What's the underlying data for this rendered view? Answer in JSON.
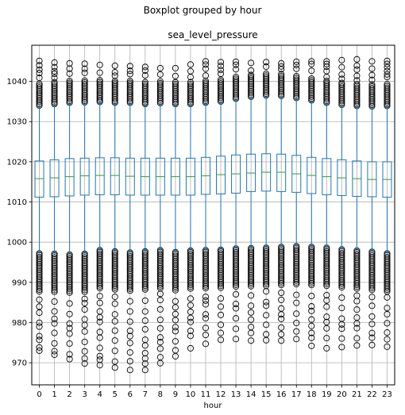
{
  "chart_data": {
    "type": "boxplot",
    "suptitle": "Boxplot grouped by hour",
    "title": "sea_level_pressure",
    "xlabel": "hour",
    "ylabel": "",
    "ylim": [
      964.5,
      1049
    ],
    "yticks": [
      970,
      980,
      990,
      1000,
      1010,
      1020,
      1030,
      1040
    ],
    "grid": true,
    "colors": {
      "box": "#1f77b4",
      "median": "#2ca02c",
      "grid": "#b0b0b0",
      "flier": "#000000"
    },
    "categories": [
      "0",
      "1",
      "2",
      "3",
      "4",
      "5",
      "6",
      "7",
      "8",
      "9",
      "10",
      "11",
      "12",
      "13",
      "14",
      "15",
      "16",
      "17",
      "18",
      "19",
      "20",
      "21",
      "22",
      "23"
    ],
    "boxes": [
      {
        "q1": 1011.2,
        "median": 1015.8,
        "q3": 1020.2,
        "whislo": 997.6,
        "whishi": 1033.6,
        "outlier_min": 973.0,
        "outlier_max": 1045.1
      },
      {
        "q1": 1011.3,
        "median": 1016.0,
        "q3": 1020.5,
        "whislo": 997.5,
        "whishi": 1034.0,
        "outlier_min": 972.0,
        "outlier_max": 1044.7
      },
      {
        "q1": 1011.5,
        "median": 1016.3,
        "q3": 1020.8,
        "whislo": 997.3,
        "whishi": 1034.3,
        "outlier_min": 970.9,
        "outlier_max": 1044.5
      },
      {
        "q1": 1011.7,
        "median": 1016.5,
        "q3": 1020.9,
        "whislo": 997.5,
        "whishi": 1034.4,
        "outlier_min": 969.8,
        "outlier_max": 1044.4
      },
      {
        "q1": 1011.8,
        "median": 1016.6,
        "q3": 1021.0,
        "whislo": 998.4,
        "whishi": 1034.5,
        "outlier_min": 969.4,
        "outlier_max": 1044.1
      },
      {
        "q1": 1011.8,
        "median": 1016.6,
        "q3": 1021.0,
        "whislo": 998.1,
        "whishi": 1034.3,
        "outlier_min": 968.8,
        "outlier_max": 1043.9
      },
      {
        "q1": 1011.7,
        "median": 1016.4,
        "q3": 1020.9,
        "whislo": 997.8,
        "whishi": 1034.3,
        "outlier_min": 968.2,
        "outlier_max": 1043.8
      },
      {
        "q1": 1011.7,
        "median": 1016.3,
        "q3": 1020.9,
        "whislo": 998.1,
        "whishi": 1034.0,
        "outlier_min": 968.2,
        "outlier_max": 1043.6
      },
      {
        "q1": 1011.7,
        "median": 1016.3,
        "q3": 1020.9,
        "whislo": 998.4,
        "whishi": 1034.2,
        "outlier_min": 969.9,
        "outlier_max": 1043.3
      },
      {
        "q1": 1011.7,
        "median": 1016.3,
        "q3": 1020.9,
        "whislo": 997.9,
        "whishi": 1034.0,
        "outlier_min": 971.6,
        "outlier_max": 1043.3
      },
      {
        "q1": 1011.7,
        "median": 1016.3,
        "q3": 1020.9,
        "whislo": 998.3,
        "whishi": 1034.0,
        "outlier_min": 973.6,
        "outlier_max": 1044.2
      },
      {
        "q1": 1011.9,
        "median": 1016.5,
        "q3": 1021.1,
        "whislo": 998.4,
        "whishi": 1034.3,
        "outlier_min": 974.7,
        "outlier_max": 1045.0
      },
      {
        "q1": 1012.0,
        "median": 1016.8,
        "q3": 1021.4,
        "whislo": 998.5,
        "whishi": 1034.6,
        "outlier_min": 975.7,
        "outlier_max": 1044.8
      },
      {
        "q1": 1012.2,
        "median": 1017.0,
        "q3": 1021.7,
        "whislo": 998.8,
        "whishi": 1035.3,
        "outlier_min": 975.9,
        "outlier_max": 1044.9
      },
      {
        "q1": 1012.6,
        "median": 1017.2,
        "q3": 1021.9,
        "whislo": 998.9,
        "whishi": 1035.8,
        "outlier_min": 975.5,
        "outlier_max": 1044.6
      },
      {
        "q1": 1012.7,
        "median": 1017.4,
        "q3": 1022.0,
        "whislo": 999.0,
        "whishi": 1036.1,
        "outlier_min": 975.6,
        "outlier_max": 1044.8
      },
      {
        "q1": 1012.6,
        "median": 1017.4,
        "q3": 1021.9,
        "whislo": 999.2,
        "whishi": 1036.0,
        "outlier_min": 975.5,
        "outlier_max": 1044.5
      },
      {
        "q1": 1012.4,
        "median": 1017.0,
        "q3": 1021.6,
        "whislo": 999.4,
        "whishi": 1035.5,
        "outlier_min": 975.9,
        "outlier_max": 1044.9
      },
      {
        "q1": 1012.1,
        "median": 1016.6,
        "q3": 1021.1,
        "whislo": 999.2,
        "whishi": 1034.9,
        "outlier_min": 974.2,
        "outlier_max": 1045.0
      },
      {
        "q1": 1011.8,
        "median": 1016.3,
        "q3": 1020.8,
        "whislo": 999.0,
        "whishi": 1034.3,
        "outlier_min": 973.6,
        "outlier_max": 1045.0
      },
      {
        "q1": 1011.6,
        "median": 1016.0,
        "q3": 1020.5,
        "whislo": 998.6,
        "whishi": 1033.8,
        "outlier_min": 973.9,
        "outlier_max": 1045.3
      },
      {
        "q1": 1011.4,
        "median": 1015.8,
        "q3": 1020.2,
        "whislo": 998.3,
        "whishi": 1033.5,
        "outlier_min": 974.3,
        "outlier_max": 1045.5
      },
      {
        "q1": 1011.3,
        "median": 1015.6,
        "q3": 1020.0,
        "whislo": 998.0,
        "whishi": 1033.4,
        "outlier_min": 974.4,
        "outlier_max": 1045.0
      },
      {
        "q1": 1011.2,
        "median": 1015.6,
        "q3": 1020.0,
        "whislo": 997.6,
        "whishi": 1033.5,
        "outlier_min": 974.0,
        "outlier_max": 1045.1
      }
    ]
  }
}
